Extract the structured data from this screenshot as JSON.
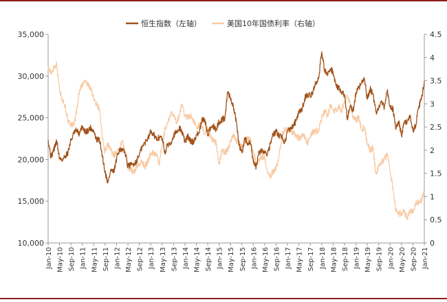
{
  "chart_data": {
    "type": "line",
    "legend_position": "top",
    "grid": false,
    "x_ticks": [
      "Jan-10",
      "May-10",
      "Sep-10",
      "Jan-11",
      "May-11",
      "Sep-11",
      "Jan-12",
      "May-12",
      "Sep-12",
      "Jan-13",
      "May-13",
      "Sep-13",
      "Jan-14",
      "May-14",
      "Sep-14",
      "Jan-15",
      "May-15",
      "Sep-15",
      "Jan-16",
      "May-16",
      "Sep-16",
      "Jan-17",
      "May-17",
      "Sep-17",
      "Jan-18",
      "May-18",
      "Sep-18",
      "Jan-19",
      "May-19",
      "Sep-19",
      "Jan-20",
      "May-20",
      "Sep-20",
      "Jan-21"
    ],
    "left_axis": {
      "range": [
        10000,
        35000
      ],
      "ticks": [
        10000,
        15000,
        20000,
        25000,
        30000,
        35000
      ],
      "tick_labels": [
        "10,000",
        "15,000",
        "20,000",
        "25,000",
        "30,000",
        "35,000"
      ]
    },
    "right_axis": {
      "range": [
        0,
        4.5
      ],
      "ticks": [
        0,
        0.5,
        1,
        1.5,
        2,
        2.5,
        3,
        3.5,
        4,
        4.5
      ],
      "tick_labels": [
        "0",
        "0.5",
        "1",
        "1.5",
        "2",
        "2.5",
        "3",
        "3.5",
        "4",
        "4.5"
      ]
    },
    "series": [
      {
        "name": "恒生指数（左轴）",
        "axis": "left",
        "color": "#a0521a",
        "points": [
          [
            "2010-01-01",
            22400
          ],
          [
            "2010-02-01",
            20300
          ],
          [
            "2010-03-01",
            21200
          ],
          [
            "2010-04-01",
            22200
          ],
          [
            "2010-05-01",
            20100
          ],
          [
            "2010-06-01",
            20000
          ],
          [
            "2010-07-01",
            20400
          ],
          [
            "2010-08-01",
            20900
          ],
          [
            "2010-09-01",
            22300
          ],
          [
            "2010-10-01",
            23100
          ],
          [
            "2010-11-01",
            23500
          ],
          [
            "2010-12-01",
            23000
          ],
          [
            "2011-01-01",
            24000
          ],
          [
            "2011-02-01",
            23300
          ],
          [
            "2011-03-01",
            23500
          ],
          [
            "2011-04-01",
            23800
          ],
          [
            "2011-05-01",
            23400
          ],
          [
            "2011-06-01",
            22300
          ],
          [
            "2011-07-01",
            22400
          ],
          [
            "2011-08-01",
            20500
          ],
          [
            "2011-09-01",
            18500
          ],
          [
            "2011-10-01",
            17200
          ],
          [
            "2011-11-01",
            18800
          ],
          [
            "2011-12-01",
            18400
          ],
          [
            "2012-01-01",
            20000
          ],
          [
            "2012-02-01",
            21300
          ],
          [
            "2012-03-01",
            21000
          ],
          [
            "2012-04-01",
            20900
          ],
          [
            "2012-05-01",
            19200
          ],
          [
            "2012-06-01",
            19300
          ],
          [
            "2012-07-01",
            19500
          ],
          [
            "2012-08-01",
            19800
          ],
          [
            "2012-09-01",
            20600
          ],
          [
            "2012-10-01",
            21500
          ],
          [
            "2012-11-01",
            22000
          ],
          [
            "2012-12-01",
            22600
          ],
          [
            "2013-01-01",
            23400
          ],
          [
            "2013-02-01",
            23100
          ],
          [
            "2013-03-01",
            22300
          ],
          [
            "2013-04-01",
            22700
          ],
          [
            "2013-05-01",
            22500
          ],
          [
            "2013-06-01",
            20800
          ],
          [
            "2013-07-01",
            21800
          ],
          [
            "2013-08-01",
            22000
          ],
          [
            "2013-09-01",
            22900
          ],
          [
            "2013-10-01",
            23200
          ],
          [
            "2013-11-01",
            23800
          ],
          [
            "2013-12-01",
            23300
          ],
          [
            "2014-01-01",
            22100
          ],
          [
            "2014-02-01",
            22800
          ],
          [
            "2014-03-01",
            22200
          ],
          [
            "2014-04-01",
            22100
          ],
          [
            "2014-05-01",
            22900
          ],
          [
            "2014-06-01",
            23200
          ],
          [
            "2014-07-01",
            24700
          ],
          [
            "2014-08-01",
            24800
          ],
          [
            "2014-09-01",
            22900
          ],
          [
            "2014-10-01",
            23900
          ],
          [
            "2014-11-01",
            24000
          ],
          [
            "2014-12-01",
            23600
          ],
          [
            "2015-01-01",
            24500
          ],
          [
            "2015-02-01",
            24800
          ],
          [
            "2015-03-01",
            24900
          ],
          [
            "2015-04-01",
            28100
          ],
          [
            "2015-05-01",
            27400
          ],
          [
            "2015-06-01",
            26300
          ],
          [
            "2015-07-01",
            24600
          ],
          [
            "2015-08-01",
            21700
          ],
          [
            "2015-09-01",
            20800
          ],
          [
            "2015-10-01",
            22600
          ],
          [
            "2015-11-01",
            21900
          ],
          [
            "2015-12-01",
            21900
          ],
          [
            "2016-01-01",
            19700
          ],
          [
            "2016-02-01",
            19100
          ],
          [
            "2016-03-01",
            20800
          ],
          [
            "2016-04-01",
            21100
          ],
          [
            "2016-05-01",
            20800
          ],
          [
            "2016-06-01",
            20800
          ],
          [
            "2016-07-01",
            21900
          ],
          [
            "2016-08-01",
            23000
          ],
          [
            "2016-09-01",
            23300
          ],
          [
            "2016-10-01",
            22900
          ],
          [
            "2016-11-01",
            22800
          ],
          [
            "2016-12-01",
            22000
          ],
          [
            "2017-01-01",
            23400
          ],
          [
            "2017-02-01",
            23700
          ],
          [
            "2017-03-01",
            24100
          ],
          [
            "2017-04-01",
            24600
          ],
          [
            "2017-05-01",
            25700
          ],
          [
            "2017-06-01",
            25800
          ],
          [
            "2017-07-01",
            27300
          ],
          [
            "2017-08-01",
            27900
          ],
          [
            "2017-09-01",
            27500
          ],
          [
            "2017-10-01",
            28200
          ],
          [
            "2017-11-01",
            29200
          ],
          [
            "2017-12-01",
            29900
          ],
          [
            "2018-01-01",
            32900
          ],
          [
            "2018-02-01",
            30800
          ],
          [
            "2018-03-01",
            30100
          ],
          [
            "2018-04-01",
            30800
          ],
          [
            "2018-05-01",
            30500
          ],
          [
            "2018-06-01",
            28900
          ],
          [
            "2018-07-01",
            28600
          ],
          [
            "2018-08-01",
            27900
          ],
          [
            "2018-09-01",
            27800
          ],
          [
            "2018-10-01",
            24900
          ],
          [
            "2018-11-01",
            26500
          ],
          [
            "2018-12-01",
            25800
          ],
          [
            "2019-01-01",
            27900
          ],
          [
            "2019-02-01",
            28600
          ],
          [
            "2019-03-01",
            29100
          ],
          [
            "2019-04-01",
            29700
          ],
          [
            "2019-05-01",
            27200
          ],
          [
            "2019-06-01",
            28500
          ],
          [
            "2019-07-01",
            27800
          ],
          [
            "2019-08-01",
            25700
          ],
          [
            "2019-09-01",
            26100
          ],
          [
            "2019-10-01",
            26900
          ],
          [
            "2019-11-01",
            26300
          ],
          [
            "2019-12-01",
            28200
          ],
          [
            "2020-01-01",
            26300
          ],
          [
            "2020-02-01",
            26100
          ],
          [
            "2020-03-01",
            23600
          ],
          [
            "2020-04-01",
            24600
          ],
          [
            "2020-05-01",
            22900
          ],
          [
            "2020-06-01",
            24400
          ],
          [
            "2020-07-01",
            24600
          ],
          [
            "2020-08-01",
            25200
          ],
          [
            "2020-09-01",
            23500
          ],
          [
            "2020-10-01",
            24100
          ],
          [
            "2020-11-01",
            26300
          ],
          [
            "2020-12-01",
            27200
          ],
          [
            "2021-01-01",
            29400
          ]
        ]
      },
      {
        "name": "美国10年国债利率（右轴）",
        "axis": "right",
        "color": "#f8cba4",
        "points": [
          [
            "2010-01-01",
            3.8
          ],
          [
            "2010-02-01",
            3.65
          ],
          [
            "2010-03-01",
            3.8
          ],
          [
            "2010-04-01",
            3.85
          ],
          [
            "2010-05-01",
            3.3
          ],
          [
            "2010-06-01",
            3.1
          ],
          [
            "2010-07-01",
            2.95
          ],
          [
            "2010-08-01",
            2.6
          ],
          [
            "2010-09-01",
            2.55
          ],
          [
            "2010-10-01",
            2.55
          ],
          [
            "2010-11-01",
            2.85
          ],
          [
            "2010-12-01",
            3.3
          ],
          [
            "2011-01-01",
            3.4
          ],
          [
            "2011-02-01",
            3.5
          ],
          [
            "2011-03-01",
            3.4
          ],
          [
            "2011-04-01",
            3.35
          ],
          [
            "2011-05-01",
            3.1
          ],
          [
            "2011-06-01",
            3.0
          ],
          [
            "2011-07-01",
            2.9
          ],
          [
            "2011-08-01",
            2.25
          ],
          [
            "2011-09-01",
            1.95
          ],
          [
            "2011-10-01",
            2.15
          ],
          [
            "2011-11-01",
            2.0
          ],
          [
            "2011-12-01",
            1.9
          ],
          [
            "2012-01-01",
            1.95
          ],
          [
            "2012-02-01",
            1.98
          ],
          [
            "2012-03-01",
            2.2
          ],
          [
            "2012-04-01",
            1.95
          ],
          [
            "2012-05-01",
            1.65
          ],
          [
            "2012-06-01",
            1.6
          ],
          [
            "2012-07-01",
            1.5
          ],
          [
            "2012-08-01",
            1.65
          ],
          [
            "2012-09-01",
            1.7
          ],
          [
            "2012-10-01",
            1.75
          ],
          [
            "2012-11-01",
            1.65
          ],
          [
            "2012-12-01",
            1.75
          ],
          [
            "2013-01-01",
            1.95
          ],
          [
            "2013-02-01",
            1.95
          ],
          [
            "2013-03-01",
            1.9
          ],
          [
            "2013-04-01",
            1.7
          ],
          [
            "2013-05-01",
            2.1
          ],
          [
            "2013-06-01",
            2.45
          ],
          [
            "2013-07-01",
            2.6
          ],
          [
            "2013-08-01",
            2.8
          ],
          [
            "2013-09-01",
            2.75
          ],
          [
            "2013-10-01",
            2.6
          ],
          [
            "2013-11-01",
            2.75
          ],
          [
            "2013-12-01",
            3.0
          ],
          [
            "2014-01-01",
            2.75
          ],
          [
            "2014-02-01",
            2.7
          ],
          [
            "2014-03-01",
            2.75
          ],
          [
            "2014-04-01",
            2.65
          ],
          [
            "2014-05-01",
            2.5
          ],
          [
            "2014-06-01",
            2.55
          ],
          [
            "2014-07-01",
            2.5
          ],
          [
            "2014-08-01",
            2.35
          ],
          [
            "2014-09-01",
            2.5
          ],
          [
            "2014-10-01",
            2.3
          ],
          [
            "2014-11-01",
            2.2
          ],
          [
            "2014-12-01",
            2.15
          ],
          [
            "2015-01-01",
            1.7
          ],
          [
            "2015-02-01",
            2.0
          ],
          [
            "2015-03-01",
            1.95
          ],
          [
            "2015-04-01",
            2.0
          ],
          [
            "2015-05-01",
            2.2
          ],
          [
            "2015-06-01",
            2.35
          ],
          [
            "2015-07-01",
            2.2
          ],
          [
            "2015-08-01",
            2.15
          ],
          [
            "2015-09-01",
            2.05
          ],
          [
            "2015-10-01",
            2.15
          ],
          [
            "2015-11-01",
            2.25
          ],
          [
            "2015-12-01",
            2.25
          ],
          [
            "2016-01-01",
            1.95
          ],
          [
            "2016-02-01",
            1.75
          ],
          [
            "2016-03-01",
            1.8
          ],
          [
            "2016-04-01",
            1.85
          ],
          [
            "2016-05-01",
            1.85
          ],
          [
            "2016-06-01",
            1.5
          ],
          [
            "2016-07-01",
            1.45
          ],
          [
            "2016-08-01",
            1.55
          ],
          [
            "2016-09-01",
            1.6
          ],
          [
            "2016-10-01",
            1.85
          ],
          [
            "2016-11-01",
            2.3
          ],
          [
            "2016-12-01",
            2.45
          ],
          [
            "2017-01-01",
            2.45
          ],
          [
            "2017-02-01",
            2.4
          ],
          [
            "2017-03-01",
            2.4
          ],
          [
            "2017-04-01",
            2.3
          ],
          [
            "2017-05-01",
            2.25
          ],
          [
            "2017-06-01",
            2.3
          ],
          [
            "2017-07-01",
            2.3
          ],
          [
            "2017-08-01",
            2.15
          ],
          [
            "2017-09-01",
            2.3
          ],
          [
            "2017-10-01",
            2.4
          ],
          [
            "2017-11-01",
            2.4
          ],
          [
            "2017-12-01",
            2.45
          ],
          [
            "2018-01-01",
            2.7
          ],
          [
            "2018-02-01",
            2.85
          ],
          [
            "2018-03-01",
            2.75
          ],
          [
            "2018-04-01",
            2.95
          ],
          [
            "2018-05-01",
            2.85
          ],
          [
            "2018-06-01",
            2.85
          ],
          [
            "2018-07-01",
            2.95
          ],
          [
            "2018-08-01",
            2.85
          ],
          [
            "2018-09-01",
            3.05
          ],
          [
            "2018-10-01",
            3.15
          ],
          [
            "2018-11-01",
            3.0
          ],
          [
            "2018-12-01",
            2.7
          ],
          [
            "2019-01-01",
            2.65
          ],
          [
            "2019-02-01",
            2.7
          ],
          [
            "2019-03-01",
            2.45
          ],
          [
            "2019-04-01",
            2.5
          ],
          [
            "2019-05-01",
            2.15
          ],
          [
            "2019-06-01",
            2.0
          ],
          [
            "2019-07-01",
            2.05
          ],
          [
            "2019-08-01",
            1.5
          ],
          [
            "2019-09-01",
            1.65
          ],
          [
            "2019-10-01",
            1.75
          ],
          [
            "2019-11-01",
            1.8
          ],
          [
            "2019-12-01",
            1.9
          ],
          [
            "2020-01-01",
            1.55
          ],
          [
            "2020-02-01",
            1.2
          ],
          [
            "2020-03-01",
            0.7
          ],
          [
            "2020-04-01",
            0.62
          ],
          [
            "2020-05-01",
            0.65
          ],
          [
            "2020-06-01",
            0.66
          ],
          [
            "2020-07-01",
            0.55
          ],
          [
            "2020-08-01",
            0.7
          ],
          [
            "2020-09-01",
            0.68
          ],
          [
            "2020-10-01",
            0.85
          ],
          [
            "2020-11-01",
            0.88
          ],
          [
            "2020-12-01",
            0.93
          ],
          [
            "2021-01-01",
            1.1
          ]
        ]
      }
    ]
  }
}
